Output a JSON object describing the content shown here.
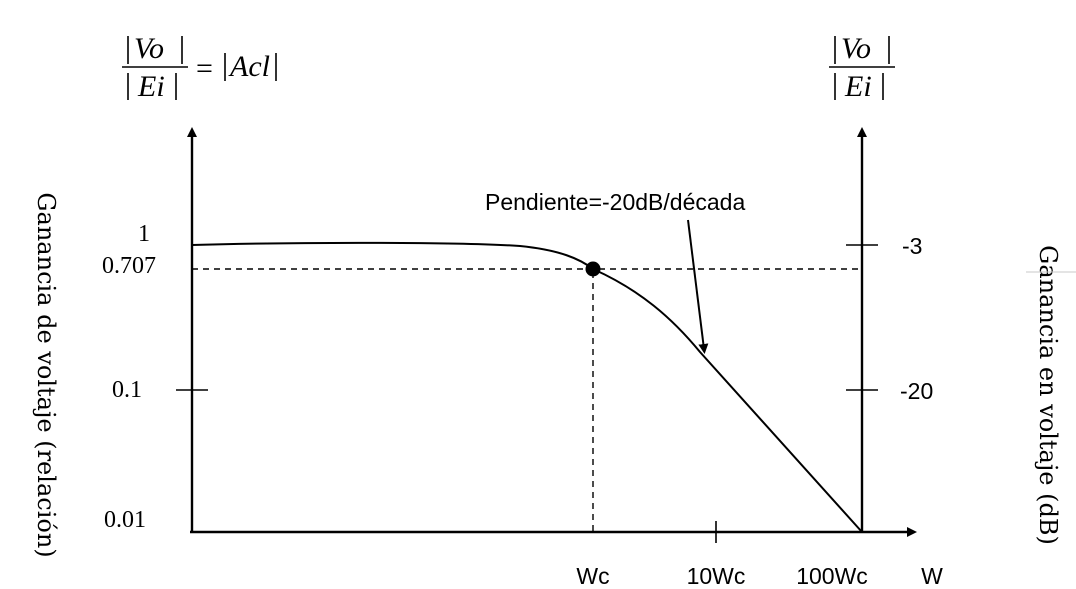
{
  "left_header": {
    "numerator": "Vo",
    "denominator": "Ei",
    "equals": "=",
    "rhs": "Acl"
  },
  "right_header": {
    "numerator": "Vo",
    "denominator": "Ei"
  },
  "left_axis_title": "Ganancia de voltaje (relación)",
  "right_axis_title": "Ganancia en voltaje (dB)",
  "left_ticks": [
    "1",
    "0.707",
    "0.1",
    "0.01"
  ],
  "right_ticks": [
    "-3",
    "-20"
  ],
  "x_ticks": [
    "Wc",
    "10Wc",
    "100Wc"
  ],
  "x_axis_label": "W",
  "annotation": "Pendiente=-20dB/década"
}
